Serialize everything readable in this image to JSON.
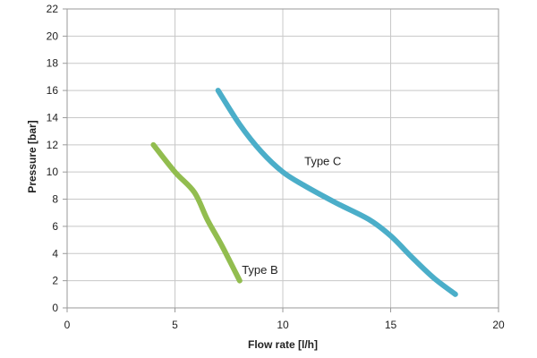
{
  "chart_data": {
    "type": "line",
    "title": "",
    "xlabel": "Flow rate [l/h]",
    "ylabel": "Pressure [bar]",
    "xlim": [
      0,
      20
    ],
    "ylim": [
      0,
      22
    ],
    "x_ticks": [
      0,
      5,
      10,
      15,
      20
    ],
    "y_ticks": [
      0,
      2,
      4,
      6,
      8,
      10,
      12,
      14,
      16,
      18,
      20,
      22
    ],
    "grid": true,
    "legend": "none",
    "series": [
      {
        "name": "Type B",
        "color": "#92bd4f",
        "points": [
          [
            4,
            12
          ],
          [
            5,
            10
          ],
          [
            5.9,
            8.5
          ],
          [
            6.5,
            6.5
          ],
          [
            7.2,
            4.5
          ],
          [
            8,
            2
          ]
        ]
      },
      {
        "name": "Type C",
        "color": "#4baec9",
        "points": [
          [
            7,
            16
          ],
          [
            8,
            13.5
          ],
          [
            9,
            11.5
          ],
          [
            10,
            10
          ],
          [
            11,
            9
          ],
          [
            12.5,
            7.7
          ],
          [
            14,
            6.5
          ],
          [
            15,
            5.3
          ],
          [
            16,
            3.7
          ],
          [
            17,
            2.2
          ],
          [
            18,
            1
          ]
        ]
      }
    ],
    "annotations": [
      {
        "text": "Type C",
        "x": 11,
        "y": 10.5
      },
      {
        "text": "Type B",
        "x": 8.1,
        "y": 2.5
      }
    ]
  }
}
